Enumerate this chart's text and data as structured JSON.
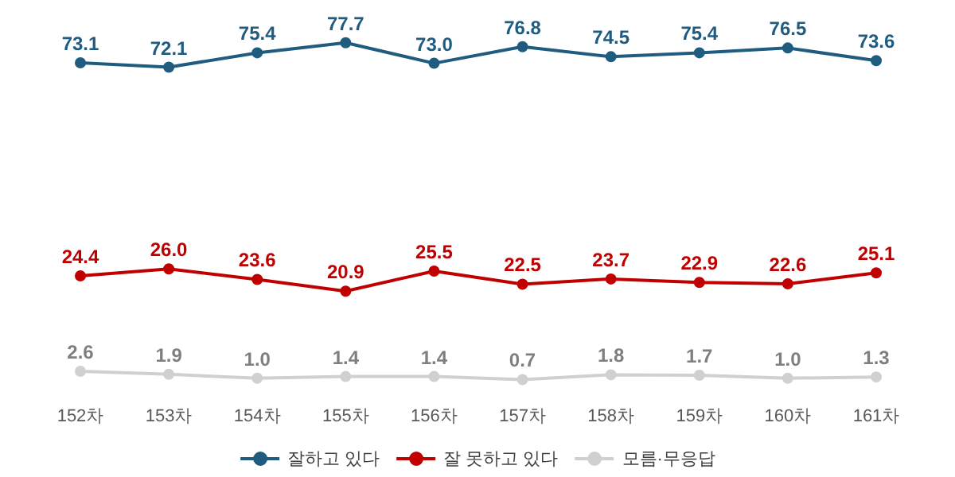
{
  "chart_data": {
    "type": "line",
    "categories": [
      "152차",
      "153차",
      "154차",
      "155차",
      "156차",
      "157차",
      "158차",
      "159차",
      "160차",
      "161차"
    ],
    "series": [
      {
        "name": "잘하고 있다",
        "color": "#1f5c80",
        "values": [
          73.1,
          72.1,
          75.4,
          77.7,
          73.0,
          76.8,
          74.5,
          75.4,
          76.5,
          73.6
        ],
        "value_labels": [
          "73.1",
          "72.1",
          "75.4",
          "77.7",
          "73.0",
          "76.8",
          "74.5",
          "75.4",
          "76.5",
          "73.6"
        ]
      },
      {
        "name": "잘 못하고 있다",
        "color": "#c00000",
        "values": [
          24.4,
          26.0,
          23.6,
          20.9,
          25.5,
          22.5,
          23.7,
          22.9,
          22.6,
          25.1
        ],
        "value_labels": [
          "24.4",
          "26.0",
          "23.6",
          "20.9",
          "25.5",
          "22.5",
          "23.7",
          "22.9",
          "22.6",
          "25.1"
        ]
      },
      {
        "name": "모름·무응답",
        "color": "#d0d0d0",
        "values": [
          2.6,
          1.9,
          1.0,
          1.4,
          1.4,
          0.7,
          1.8,
          1.7,
          1.0,
          1.3
        ],
        "value_labels": [
          "2.6",
          "1.9",
          "1.0",
          "1.4",
          "1.4",
          "0.7",
          "1.8",
          "1.7",
          "1.0",
          "1.3"
        ]
      }
    ],
    "marker": "circle",
    "line_style": "solid",
    "grid": false,
    "legend": "bottom"
  }
}
